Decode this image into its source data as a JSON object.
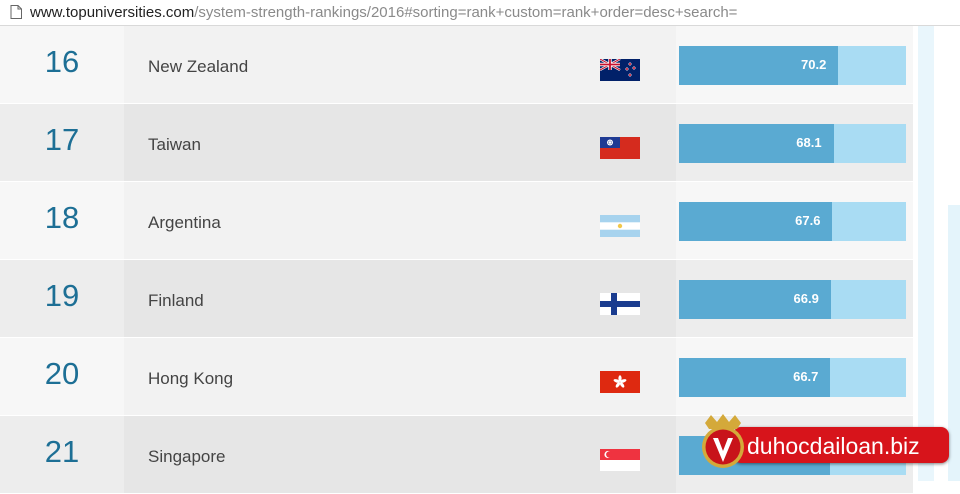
{
  "browser": {
    "url_host": "www.topuniversities.com",
    "url_path": "/system-strength-rankings/2016#sorting=rank+custom=rank+order=desc+search="
  },
  "rows": [
    {
      "rank": "16",
      "country": "New Zealand",
      "score": "70.2",
      "score_value": 70.2,
      "flag": "new-zealand-flag-icon"
    },
    {
      "rank": "17",
      "country": "Taiwan",
      "score": "68.1",
      "score_value": 68.1,
      "flag": "taiwan-flag-icon"
    },
    {
      "rank": "18",
      "country": "Argentina",
      "score": "67.6",
      "score_value": 67.6,
      "flag": "argentina-flag-icon"
    },
    {
      "rank": "19",
      "country": "Finland",
      "score": "66.9",
      "score_value": 66.9,
      "flag": "finland-flag-icon"
    },
    {
      "rank": "20",
      "country": "Hong Kong",
      "score": "66.7",
      "score_value": 66.7,
      "flag": "hong-kong-flag-icon"
    },
    {
      "rank": "21",
      "country": "Singapore",
      "score": "",
      "score_value": 66.5,
      "flag": "singapore-flag-icon"
    }
  ],
  "watermark": {
    "text": "duhocdailoan.biz",
    "icon": "duhocdailoan-logo-icon"
  },
  "colors": {
    "rank_text": "#1d6f95",
    "bar_fill": "#5aaad2",
    "bar_track": "#a9dcf3",
    "watermark_bg": "#d7141b"
  }
}
